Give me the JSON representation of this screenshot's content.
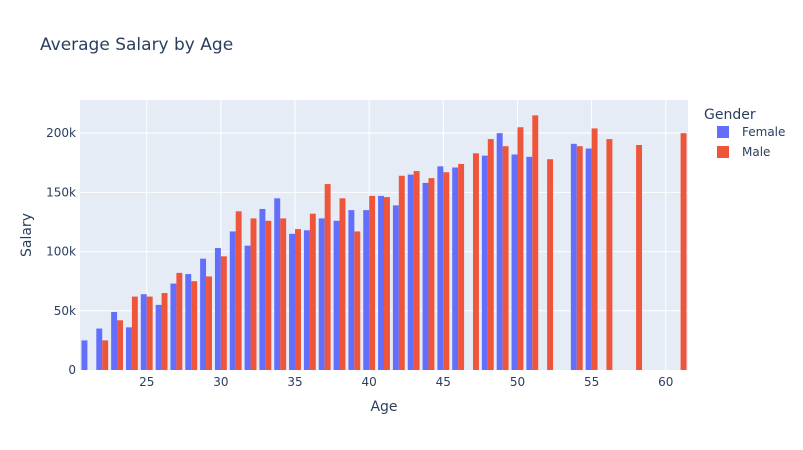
{
  "chart_data": {
    "type": "bar",
    "title": "Average Salary by Age",
    "xlabel": "Age",
    "ylabel": "Salary",
    "xlim": [
      20.5,
      61.5
    ],
    "ylim": [
      0,
      228000
    ],
    "x_ticks": [
      25,
      30,
      35,
      40,
      45,
      50,
      55,
      60
    ],
    "y_ticks": [
      0,
      50000,
      100000,
      150000,
      200000
    ],
    "y_tick_labels": [
      "0",
      "50k",
      "100k",
      "150k",
      "200k"
    ],
    "grid": true,
    "legend": {
      "title": "Gender",
      "placement": "right"
    },
    "series": [
      {
        "name": "Female",
        "color": "#636efa",
        "points": [
          {
            "x": 21,
            "y": 25000
          },
          {
            "x": 22,
            "y": 35000
          },
          {
            "x": 23,
            "y": 49000
          },
          {
            "x": 24,
            "y": 36000
          },
          {
            "x": 25,
            "y": 64000
          },
          {
            "x": 26,
            "y": 55000
          },
          {
            "x": 27,
            "y": 73000
          },
          {
            "x": 28,
            "y": 81000
          },
          {
            "x": 29,
            "y": 94000
          },
          {
            "x": 30,
            "y": 103000
          },
          {
            "x": 31,
            "y": 117000
          },
          {
            "x": 32,
            "y": 105000
          },
          {
            "x": 33,
            "y": 136000
          },
          {
            "x": 34,
            "y": 145000
          },
          {
            "x": 35,
            "y": 115000
          },
          {
            "x": 36,
            "y": 118000
          },
          {
            "x": 37,
            "y": 128000
          },
          {
            "x": 38,
            "y": 126000
          },
          {
            "x": 39,
            "y": 135000
          },
          {
            "x": 40,
            "y": 135000
          },
          {
            "x": 41,
            "y": 147000
          },
          {
            "x": 42,
            "y": 139000
          },
          {
            "x": 43,
            "y": 165000
          },
          {
            "x": 44,
            "y": 158000
          },
          {
            "x": 45,
            "y": 172000
          },
          {
            "x": 46,
            "y": 171000
          },
          {
            "x": 48,
            "y": 181000
          },
          {
            "x": 49,
            "y": 200000
          },
          {
            "x": 50,
            "y": 182000
          },
          {
            "x": 51,
            "y": 180000
          },
          {
            "x": 54,
            "y": 191000
          },
          {
            "x": 55,
            "y": 187000
          }
        ]
      },
      {
        "name": "Male",
        "color": "#ef553b",
        "points": [
          {
            "x": 22,
            "y": 25000
          },
          {
            "x": 23,
            "y": 42000
          },
          {
            "x": 24,
            "y": 62000
          },
          {
            "x": 25,
            "y": 62000
          },
          {
            "x": 26,
            "y": 65000
          },
          {
            "x": 27,
            "y": 82000
          },
          {
            "x": 28,
            "y": 75000
          },
          {
            "x": 29,
            "y": 79000
          },
          {
            "x": 30,
            "y": 96000
          },
          {
            "x": 31,
            "y": 134000
          },
          {
            "x": 32,
            "y": 128000
          },
          {
            "x": 33,
            "y": 126000
          },
          {
            "x": 34,
            "y": 128000
          },
          {
            "x": 35,
            "y": 119000
          },
          {
            "x": 36,
            "y": 132000
          },
          {
            "x": 37,
            "y": 157000
          },
          {
            "x": 38,
            "y": 145000
          },
          {
            "x": 39,
            "y": 117000
          },
          {
            "x": 40,
            "y": 147000
          },
          {
            "x": 41,
            "y": 146000
          },
          {
            "x": 42,
            "y": 164000
          },
          {
            "x": 43,
            "y": 168000
          },
          {
            "x": 44,
            "y": 162000
          },
          {
            "x": 45,
            "y": 167000
          },
          {
            "x": 46,
            "y": 174000
          },
          {
            "x": 47,
            "y": 183000
          },
          {
            "x": 48,
            "y": 195000
          },
          {
            "x": 49,
            "y": 189000
          },
          {
            "x": 50,
            "y": 205000
          },
          {
            "x": 51,
            "y": 215000
          },
          {
            "x": 52,
            "y": 178000
          },
          {
            "x": 54,
            "y": 189000
          },
          {
            "x": 55,
            "y": 204000
          },
          {
            "x": 56,
            "y": 195000
          },
          {
            "x": 58,
            "y": 190000
          },
          {
            "x": 61,
            "y": 200000
          }
        ]
      }
    ]
  }
}
